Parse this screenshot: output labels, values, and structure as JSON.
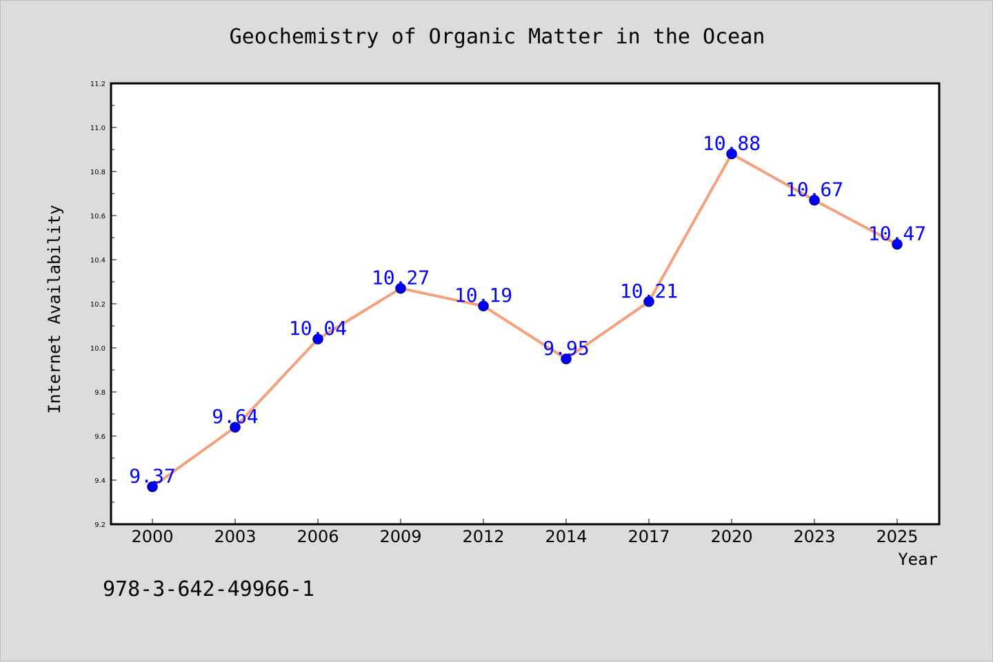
{
  "chart_data": {
    "type": "line",
    "title": "Geochemistry of Organic Matter in the Ocean",
    "xlabel": "Year",
    "ylabel": "Internet Availability",
    "categories": [
      "2000",
      "2003",
      "2006",
      "2009",
      "2012",
      "2014",
      "2017",
      "2020",
      "2023",
      "2025"
    ],
    "series": [
      {
        "values": [
          9.37,
          9.64,
          10.04,
          10.27,
          10.19,
          9.95,
          10.21,
          10.88,
          10.67,
          10.47
        ],
        "data_labels": [
          "9.37",
          "9.64",
          "10.04",
          "10.27",
          "10.19",
          "9.95",
          "10.21",
          "10.88",
          "10.67",
          "10.47"
        ],
        "line_color": "#f4a07c",
        "marker_color": "#0000ff",
        "marker_edge_color": "#00008b",
        "label_color": "#0000ff"
      }
    ],
    "ylim": [
      9.2,
      11.2
    ],
    "yticks": [
      9.2,
      9.4,
      9.6,
      9.8,
      10.0,
      10.2,
      10.4,
      10.6,
      10.8,
      11.0,
      11.2
    ],
    "ytick_labels": [
      "9.2",
      "9.4",
      "9.6",
      "9.8",
      "10.0",
      "10.2",
      "10.4",
      "10.6",
      "10.8",
      "11.0",
      "11.2"
    ],
    "grid": false,
    "legend": "none",
    "annotation": "978-3-642-49966-1",
    "background_color": "#dcdcdc",
    "plot_background_color": "#ffffff"
  }
}
